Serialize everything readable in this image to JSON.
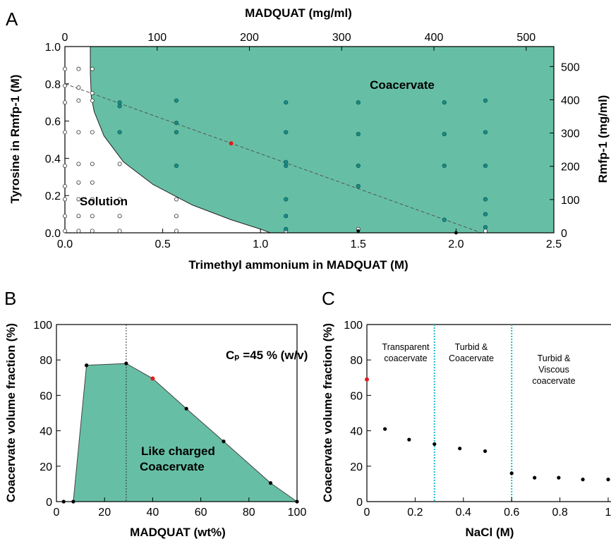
{
  "colors": {
    "coacervate_fill": "#66bfa4",
    "teal_point": "#1a8a86",
    "highlight_point": "#e41a1c",
    "divider_line": "#20b8c8",
    "black": "#000000"
  },
  "panels": {
    "A": {
      "letter": "A",
      "label_solution": "Solution",
      "label_coacervate": "Coacervate"
    },
    "B": {
      "letter": "B",
      "annotation": "Cₚ =45 % (w/v)",
      "region_line1": "Like charged",
      "region_line2": "Coacervate"
    },
    "C": {
      "letter": "C",
      "regions": [
        {
          "lines": [
            "Transparent",
            "coacervate"
          ]
        },
        {
          "lines": [
            "Turbid &",
            "Coacervate"
          ]
        },
        {
          "lines": [
            "Turbid &",
            "Viscous",
            "coacervate"
          ]
        }
      ]
    }
  },
  "chart_data": [
    {
      "type": "scatter",
      "panel": "A",
      "title": "",
      "xlabel": "Trimethyl ammonium in MADQUAT (M)",
      "ylabel": "Tyrosine in Rmfp-1 (M)",
      "x2label": "MADQUAT (mg/ml)",
      "y2label": "Rmfp-1 (mg/ml)",
      "xlim": [
        0,
        2.5
      ],
      "ylim": [
        0,
        1.0
      ],
      "x2lim": [
        0,
        530
      ],
      "y2lim": [
        0,
        560
      ],
      "xticks": [
        "0.0",
        "0.5",
        "1.0",
        "1.5",
        "2.0",
        "2.5"
      ],
      "yticks": [
        "0.0",
        "0.2",
        "0.4",
        "0.6",
        "0.8",
        "1.0"
      ],
      "x2ticks": [
        "0",
        "100",
        "200",
        "300",
        "400",
        "500"
      ],
      "y2ticks": [
        "0",
        "100",
        "200",
        "300",
        "400",
        "500"
      ],
      "phase_boundary": [
        [
          0.13,
          1.0
        ],
        [
          0.13,
          0.86
        ],
        [
          0.135,
          0.73
        ],
        [
          0.15,
          0.65
        ],
        [
          0.2,
          0.52
        ],
        [
          0.3,
          0.38
        ],
        [
          0.45,
          0.26
        ],
        [
          0.65,
          0.15
        ],
        [
          0.85,
          0.07
        ],
        [
          1.0,
          0.02
        ],
        [
          1.05,
          0.0
        ]
      ],
      "dilution_line": [
        [
          0.0,
          0.8
        ],
        [
          2.13,
          0.0
        ]
      ],
      "series": [
        {
          "marker": "open",
          "points": [
            [
              0.0,
              0.88
            ],
            [
              0.07,
              0.88
            ],
            [
              0.14,
              0.88
            ],
            [
              0.0,
              0.79
            ],
            [
              0.07,
              0.78
            ],
            [
              0.14,
              0.75
            ],
            [
              0.0,
              0.7
            ],
            [
              0.07,
              0.71
            ],
            [
              0.14,
              0.71
            ],
            [
              0.0,
              0.54
            ],
            [
              0.07,
              0.54
            ],
            [
              0.14,
              0.54
            ],
            [
              0.0,
              0.36
            ],
            [
              0.07,
              0.37
            ],
            [
              0.14,
              0.37
            ],
            [
              0.28,
              0.37
            ],
            [
              0.0,
              0.25
            ],
            [
              0.07,
              0.27
            ],
            [
              0.14,
              0.27
            ],
            [
              0.0,
              0.18
            ],
            [
              0.07,
              0.18
            ],
            [
              0.14,
              0.18
            ],
            [
              0.28,
              0.18
            ],
            [
              0.57,
              0.18
            ],
            [
              0.0,
              0.09
            ],
            [
              0.07,
              0.09
            ],
            [
              0.14,
              0.09
            ],
            [
              0.28,
              0.09
            ],
            [
              0.57,
              0.09
            ],
            [
              0.0,
              0.01
            ],
            [
              0.07,
              0.01
            ],
            [
              0.14,
              0.01
            ],
            [
              0.28,
              0.01
            ],
            [
              0.57,
              0.01
            ],
            [
              1.13,
              0.01
            ],
            [
              1.5,
              0.02
            ],
            [
              2.15,
              0.01
            ]
          ]
        },
        {
          "marker": "teal",
          "points": [
            [
              0.28,
              0.7
            ],
            [
              0.28,
              0.68
            ],
            [
              0.28,
              0.54
            ],
            [
              0.57,
              0.71
            ],
            [
              0.57,
              0.59
            ],
            [
              0.57,
              0.54
            ],
            [
              0.57,
              0.36
            ],
            [
              1.13,
              0.7
            ],
            [
              1.13,
              0.54
            ],
            [
              1.13,
              0.38
            ],
            [
              1.13,
              0.36
            ],
            [
              1.13,
              0.18
            ],
            [
              1.13,
              0.09
            ],
            [
              1.5,
              0.7
            ],
            [
              1.5,
              0.53
            ],
            [
              1.5,
              0.36
            ],
            [
              1.5,
              0.25
            ],
            [
              1.94,
              0.7
            ],
            [
              1.94,
              0.53
            ],
            [
              1.94,
              0.36
            ],
            [
              1.94,
              0.07
            ],
            [
              2.15,
              0.71
            ],
            [
              2.15,
              0.54
            ],
            [
              2.15,
              0.36
            ],
            [
              2.15,
              0.18
            ],
            [
              2.15,
              0.1
            ],
            [
              2.15,
              0.03
            ],
            [
              1.13,
              0.02
            ]
          ]
        },
        {
          "marker": "black",
          "points": [
            [
              1.5,
              0.01
            ],
            [
              2.0,
              0.0
            ]
          ]
        },
        {
          "marker": "red",
          "points": [
            [
              0.85,
              0.48
            ]
          ]
        }
      ]
    },
    {
      "type": "area",
      "panel": "B",
      "title": "",
      "xlabel": "MADQUAT (wt%)",
      "ylabel": "Coacervate volume fraction (%)",
      "xlim": [
        0,
        100
      ],
      "ylim": [
        0,
        100
      ],
      "xticks": [
        "0",
        "20",
        "40",
        "60",
        "80",
        "100"
      ],
      "yticks": [
        "0",
        "20",
        "40",
        "60",
        "80",
        "100"
      ],
      "x": [
        3,
        7,
        12.5,
        29,
        40,
        54,
        69.5,
        89,
        100
      ],
      "values": [
        0,
        0,
        77,
        78,
        69.5,
        52.5,
        34,
        10.5,
        0
      ],
      "highlight": {
        "x": 40,
        "y": 69.5
      },
      "vline_x": 29
    },
    {
      "type": "scatter",
      "panel": "C",
      "title": "",
      "xlabel": "NaCl (M)",
      "ylabel": "Coacervate volume fraction (%)",
      "xlim": [
        0,
        1.0
      ],
      "ylim": [
        0,
        100
      ],
      "xticks": [
        "0",
        "0.2",
        "0.4",
        "0.6",
        "0.8",
        "1"
      ],
      "yticks": [
        "0",
        "20",
        "40",
        "60",
        "80",
        "100"
      ],
      "x": [
        0,
        0.075,
        0.175,
        0.28,
        0.385,
        0.49,
        0.6,
        0.695,
        0.795,
        0.895,
        1.0
      ],
      "values": [
        69,
        41,
        35,
        32.5,
        30,
        28.5,
        16,
        13.5,
        13.5,
        12.5,
        12.5
      ],
      "highlight_index": 0,
      "vlines": [
        0.28,
        0.6
      ]
    }
  ]
}
